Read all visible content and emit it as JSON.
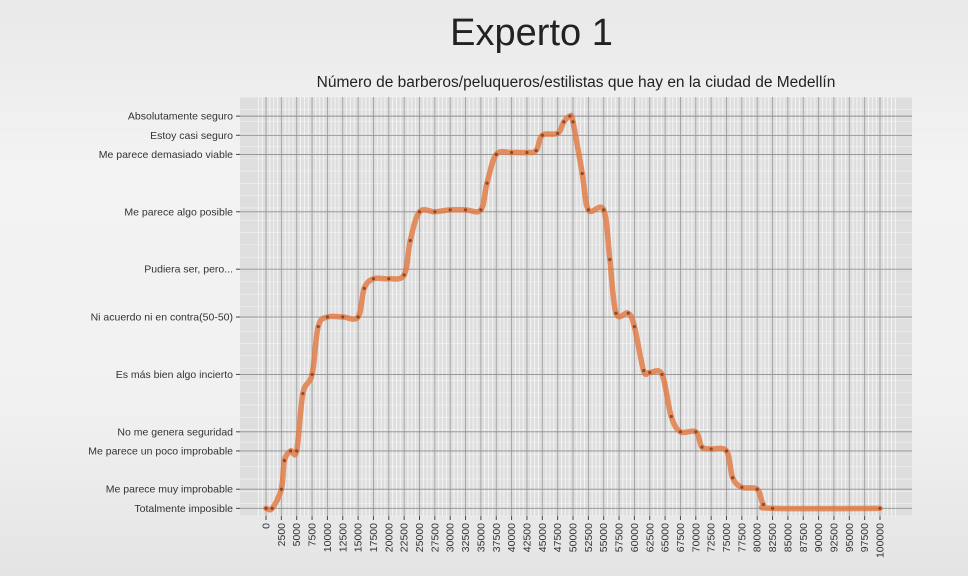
{
  "page": {
    "title": "Experto 1"
  },
  "chart_data": {
    "type": "line",
    "title": "Número de barberos/peluqueros/estilistas que hay en la ciudad de Medellín",
    "xlabel": "",
    "ylabel": "",
    "xlim": [
      0,
      100000
    ],
    "x_ticks": [
      0,
      2500,
      5000,
      7500,
      10000,
      12500,
      15000,
      17500,
      20000,
      22500,
      25000,
      27500,
      30000,
      32500,
      35000,
      37500,
      40000,
      42500,
      45000,
      47500,
      50000,
      52500,
      55000,
      57500,
      60000,
      62500,
      65000,
      67500,
      70000,
      72500,
      75000,
      77500,
      80000,
      82500,
      85000,
      87500,
      90000,
      92500,
      95000,
      97500,
      100000
    ],
    "y_levels": [
      {
        "label": "Totalmente imposible",
        "value": 0
      },
      {
        "label": "Me parece muy improbable",
        "value": 1
      },
      {
        "label": "Me parece un poco improbable",
        "value": 3
      },
      {
        "label": "No me genera seguridad",
        "value": 4
      },
      {
        "label": "Es más bien algo incierto",
        "value": 7
      },
      {
        "label": "Ni acuerdo ni en contra(50-50)",
        "value": 10
      },
      {
        "label": "Pudiera ser, pero...",
        "value": 12.5
      },
      {
        "label": "Me parece algo posible",
        "value": 15.5
      },
      {
        "label": "Me parece demasiado viable",
        "value": 18.5
      },
      {
        "label": "Estoy casi seguro",
        "value": 19.5
      },
      {
        "label": "Absolutamente seguro",
        "value": 20.5
      }
    ],
    "ylim": [
      -0.4,
      21.5
    ],
    "grid": true,
    "series": [
      {
        "color": "#e0743a",
        "points": [
          [
            0,
            0
          ],
          [
            1000,
            0
          ],
          [
            2500,
            1
          ],
          [
            3000,
            2.5
          ],
          [
            4000,
            3
          ],
          [
            5000,
            3
          ],
          [
            6000,
            6
          ],
          [
            7500,
            7
          ],
          [
            8500,
            9.5
          ],
          [
            10000,
            10
          ],
          [
            12500,
            10
          ],
          [
            15000,
            10
          ],
          [
            16000,
            11.5
          ],
          [
            17500,
            12
          ],
          [
            20000,
            12
          ],
          [
            22500,
            12.2
          ],
          [
            23500,
            14
          ],
          [
            25000,
            15.5
          ],
          [
            27500,
            15.5
          ],
          [
            30000,
            15.6
          ],
          [
            32500,
            15.6
          ],
          [
            35000,
            15.6
          ],
          [
            36000,
            17
          ],
          [
            37500,
            18.5
          ],
          [
            40000,
            18.6
          ],
          [
            42500,
            18.6
          ],
          [
            44000,
            18.7
          ],
          [
            45000,
            19.5
          ],
          [
            47500,
            19.6
          ],
          [
            48500,
            20.2
          ],
          [
            49500,
            20.5
          ],
          [
            50000,
            20.2
          ],
          [
            51500,
            17.5
          ],
          [
            52500,
            15.6
          ],
          [
            55000,
            15.6
          ],
          [
            56000,
            13
          ],
          [
            57000,
            10.2
          ],
          [
            59000,
            10.2
          ],
          [
            60000,
            9.5
          ],
          [
            61500,
            7.2
          ],
          [
            62500,
            7.1
          ],
          [
            64500,
            7
          ],
          [
            66000,
            4.8
          ],
          [
            67500,
            4
          ],
          [
            70000,
            4
          ],
          [
            71000,
            3.2
          ],
          [
            72500,
            3.1
          ],
          [
            75000,
            3
          ],
          [
            76000,
            1.6
          ],
          [
            77500,
            1.1
          ],
          [
            80000,
            1
          ],
          [
            81000,
            0.2
          ],
          [
            82500,
            0
          ],
          [
            100000,
            0
          ]
        ]
      }
    ]
  }
}
